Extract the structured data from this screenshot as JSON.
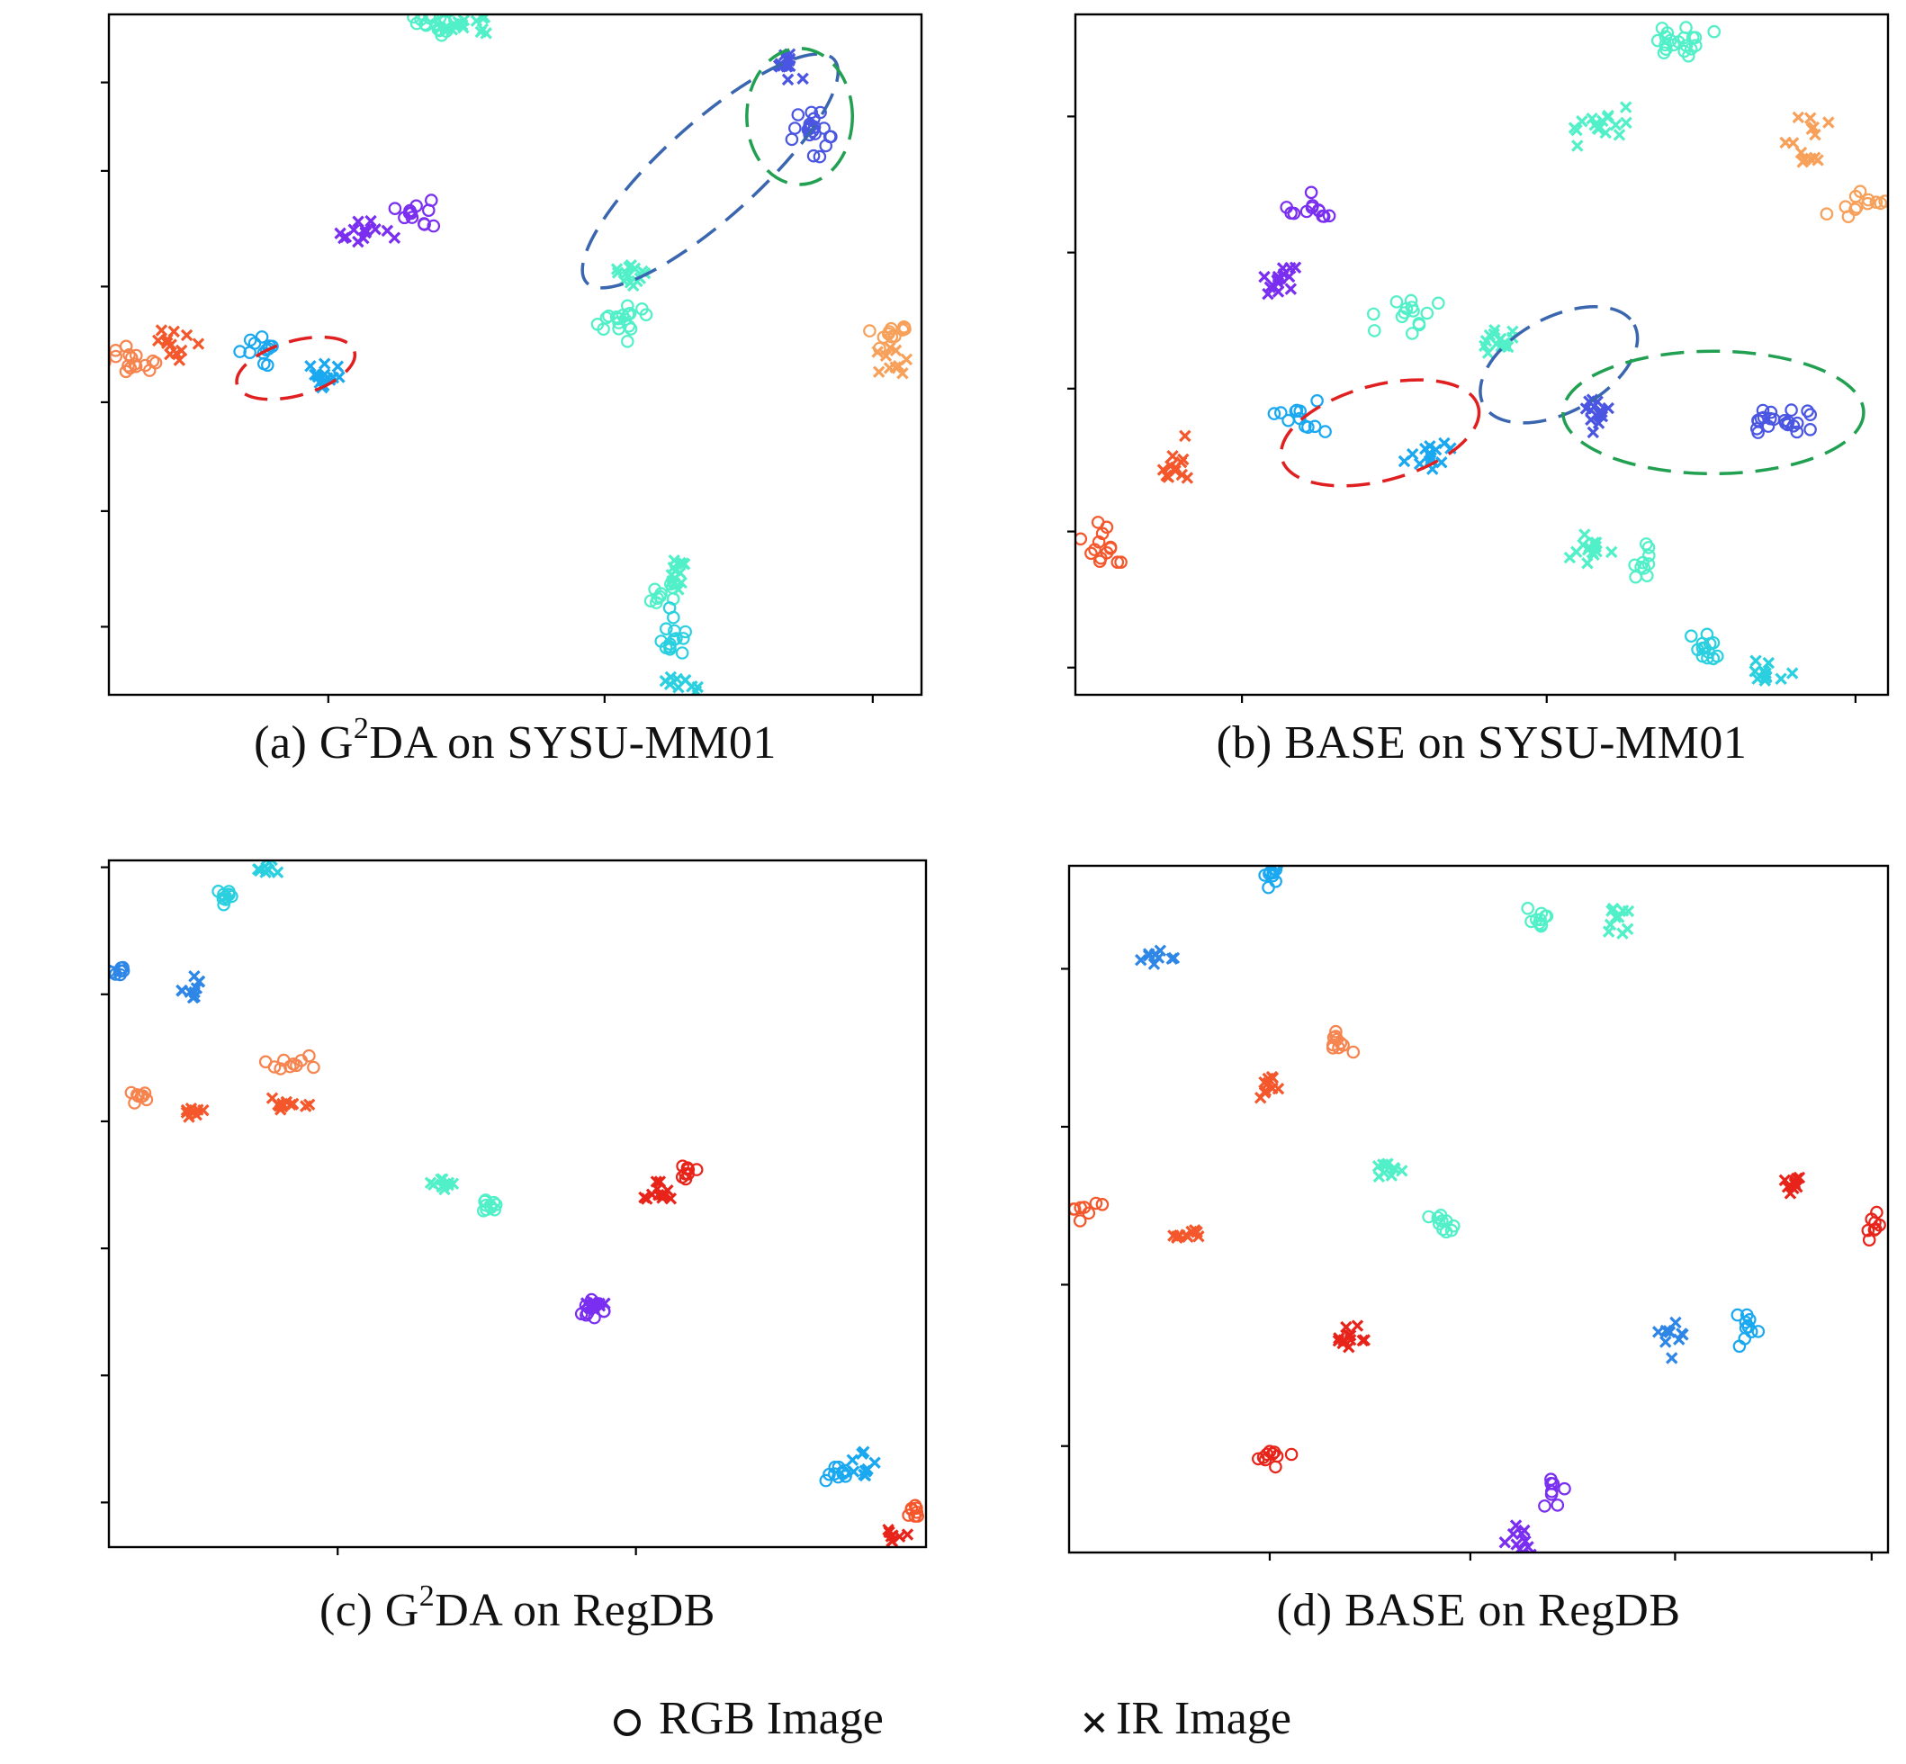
{
  "figure": {
    "legend": {
      "rgb_label": "RGB Image",
      "ir_label": "IR Image"
    }
  },
  "colors": {
    "red": "#e8241a",
    "orange_red": "#f4572b",
    "orange": "#f6844f",
    "orange_light": "#f7a05a",
    "aqua": "#52f0c8",
    "cyan": "#2ad0e0",
    "sky": "#1aa8f0",
    "blue": "#2e86e6",
    "indigo": "#4a56e2",
    "purple": "#7a2ef0",
    "ell_red": "#e02020",
    "ell_blue": "#3a66b0",
    "ell_green": "#20a050"
  },
  "chart_data": [
    {
      "type": "scatter",
      "title": "",
      "caption": {
        "pre": "(a) G",
        "sup": "2",
        "post": "DA on SYSU-MM01"
      },
      "xlim": [
        0,
        100
      ],
      "ylim": [
        0,
        100
      ],
      "x_ticks": [
        27,
        61,
        94
      ],
      "y_ticks": [
        10,
        27,
        43,
        60,
        77,
        90
      ],
      "legend": [
        "RGB Image",
        "IR Image"
      ],
      "clusters": [
        {
          "x": 40,
          "y": 99,
          "color": "aqua",
          "marker": "o",
          "n": 18,
          "sx": 1.0,
          "sy": 1.0
        },
        {
          "x": 43.5,
          "y": 98.5,
          "color": "aqua",
          "marker": "x",
          "n": 18,
          "sx": 1.6,
          "sy": 0.8
        },
        {
          "x": 83.5,
          "y": 93,
          "color": "indigo",
          "marker": "x",
          "n": 14,
          "sx": 1.3,
          "sy": 0.9
        },
        {
          "x": 86.5,
          "y": 83,
          "color": "indigo",
          "marker": "o",
          "n": 22,
          "sx": 1.4,
          "sy": 1.8
        },
        {
          "x": 38,
          "y": 71,
          "color": "purple",
          "marker": "o",
          "n": 12,
          "sx": 0.8,
          "sy": 1.3
        },
        {
          "x": 31,
          "y": 68,
          "color": "purple",
          "marker": "x",
          "n": 14,
          "sx": 1.6,
          "sy": 1.0
        },
        {
          "x": 64,
          "y": 62,
          "color": "aqua",
          "marker": "x",
          "n": 14,
          "sx": 1.4,
          "sy": 1.0
        },
        {
          "x": 63,
          "y": 55,
          "color": "aqua",
          "marker": "o",
          "n": 18,
          "sx": 1.8,
          "sy": 1.0
        },
        {
          "x": 96.5,
          "y": 53,
          "color": "orange_light",
          "marker": "o",
          "n": 12,
          "sx": 1.4,
          "sy": 1.1
        },
        {
          "x": 96,
          "y": 49,
          "color": "orange_light",
          "marker": "x",
          "n": 10,
          "sx": 1.2,
          "sy": 0.9
        },
        {
          "x": 2.5,
          "y": 49,
          "color": "orange",
          "marker": "o",
          "n": 16,
          "sx": 1.8,
          "sy": 1.2
        },
        {
          "x": 8.5,
          "y": 52,
          "color": "orange_red",
          "marker": "x",
          "n": 12,
          "sx": 1.2,
          "sy": 1.1
        },
        {
          "x": 19,
          "y": 50.5,
          "color": "sky",
          "marker": "o",
          "n": 12,
          "sx": 1.4,
          "sy": 0.9
        },
        {
          "x": 27,
          "y": 46.5,
          "color": "sky",
          "marker": "x",
          "n": 14,
          "sx": 1.2,
          "sy": 1.2
        },
        {
          "x": 70,
          "y": 18,
          "color": "aqua",
          "marker": "x",
          "n": 12,
          "sx": 1.2,
          "sy": 1.1
        },
        {
          "x": 68,
          "y": 15,
          "color": "aqua",
          "marker": "o",
          "n": 12,
          "sx": 1.2,
          "sy": 0.9
        },
        {
          "x": 69.5,
          "y": 8,
          "color": "cyan",
          "marker": "o",
          "n": 14,
          "sx": 0.9,
          "sy": 1.6
        },
        {
          "x": 70,
          "y": 1.5,
          "color": "cyan",
          "marker": "x",
          "n": 10,
          "sx": 1.2,
          "sy": 0.6
        }
      ],
      "ellipses": [
        {
          "cx": 74,
          "cy": 77,
          "rx": 20.5,
          "ry": 7,
          "angle": -42,
          "color": "ell_blue"
        },
        {
          "cx": 85,
          "cy": 85,
          "rx": 6.5,
          "ry": 10,
          "angle": 0,
          "color": "ell_green"
        },
        {
          "cx": 23,
          "cy": 48,
          "rx": 7.5,
          "ry": 4,
          "angle": -16,
          "color": "ell_red"
        }
      ]
    },
    {
      "type": "scatter",
      "title": "",
      "caption": {
        "pre": "(b) BASE on SYSU-MM01",
        "sup": "",
        "post": ""
      },
      "xlim": [
        0,
        100
      ],
      "ylim": [
        0,
        100
      ],
      "x_ticks": [
        20.5,
        58,
        96
      ],
      "y_ticks": [
        4,
        24,
        45,
        65,
        85
      ],
      "legend": [
        "RGB Image",
        "IR Image"
      ],
      "clusters": [
        {
          "x": 74,
          "y": 96,
          "color": "aqua",
          "marker": "o",
          "n": 20,
          "sx": 1.8,
          "sy": 1.3
        },
        {
          "x": 65,
          "y": 84,
          "color": "aqua",
          "marker": "x",
          "n": 16,
          "sx": 1.8,
          "sy": 1.1
        },
        {
          "x": 90.5,
          "y": 81,
          "color": "orange_light",
          "marker": "x",
          "n": 14,
          "sx": 1.4,
          "sy": 2.6
        },
        {
          "x": 96.5,
          "y": 72,
          "color": "orange_light",
          "marker": "o",
          "n": 12,
          "sx": 1.6,
          "sy": 1.3
        },
        {
          "x": 29,
          "y": 71.5,
          "color": "purple",
          "marker": "o",
          "n": 12,
          "sx": 1.4,
          "sy": 1.1
        },
        {
          "x": 25,
          "y": 61,
          "color": "purple",
          "marker": "x",
          "n": 16,
          "sx": 1.6,
          "sy": 1.2
        },
        {
          "x": 41,
          "y": 56.5,
          "color": "aqua",
          "marker": "o",
          "n": 14,
          "sx": 1.3,
          "sy": 1.3
        },
        {
          "x": 52,
          "y": 52,
          "color": "aqua",
          "marker": "x",
          "n": 16,
          "sx": 1.5,
          "sy": 1.1
        },
        {
          "x": 64,
          "y": 41.5,
          "color": "indigo",
          "marker": "x",
          "n": 14,
          "sx": 1.0,
          "sy": 1.4
        },
        {
          "x": 87,
          "y": 40,
          "color": "indigo",
          "marker": "o",
          "n": 22,
          "sx": 2.0,
          "sy": 1.2
        },
        {
          "x": 28,
          "y": 40.5,
          "color": "sky",
          "marker": "o",
          "n": 12,
          "sx": 1.6,
          "sy": 1.1
        },
        {
          "x": 43,
          "y": 35.5,
          "color": "sky",
          "marker": "x",
          "n": 14,
          "sx": 1.4,
          "sy": 1.2
        },
        {
          "x": 12,
          "y": 34,
          "color": "orange_red",
          "marker": "x",
          "n": 12,
          "sx": 1.2,
          "sy": 1.5
        },
        {
          "x": 3.5,
          "y": 22,
          "color": "orange_red",
          "marker": "o",
          "n": 14,
          "sx": 1.4,
          "sy": 1.6
        },
        {
          "x": 63.5,
          "y": 21.5,
          "color": "aqua",
          "marker": "x",
          "n": 14,
          "sx": 1.2,
          "sy": 1.6
        },
        {
          "x": 70,
          "y": 19.5,
          "color": "aqua",
          "marker": "o",
          "n": 10,
          "sx": 0.8,
          "sy": 1.4
        },
        {
          "x": 77,
          "y": 6.5,
          "color": "cyan",
          "marker": "o",
          "n": 14,
          "sx": 1.3,
          "sy": 1.4
        },
        {
          "x": 85,
          "y": 3.5,
          "color": "cyan",
          "marker": "x",
          "n": 12,
          "sx": 1.2,
          "sy": 1.4
        }
      ],
      "ellipses": [
        {
          "cx": 37.5,
          "cy": 38.5,
          "rx": 12.5,
          "ry": 7,
          "angle": -15,
          "color": "ell_red"
        },
        {
          "cx": 59.5,
          "cy": 48.5,
          "rx": 10.5,
          "ry": 7,
          "angle": -28,
          "color": "ell_blue"
        },
        {
          "cx": 78.5,
          "cy": 41.5,
          "rx": 18.5,
          "ry": 9,
          "angle": 0,
          "color": "ell_green"
        }
      ]
    },
    {
      "type": "scatter",
      "title": "",
      "caption": {
        "pre": "(c) G",
        "sup": "2",
        "post": "DA on RegDB"
      },
      "xlim": [
        0,
        100
      ],
      "ylim": [
        0,
        100
      ],
      "x_ticks": [
        28,
        64.5
      ],
      "y_ticks": [
        6.5,
        25,
        43.5,
        62,
        80.5,
        99
      ],
      "legend": [
        "RGB Image",
        "IR Image"
      ],
      "clusters": [
        {
          "x": 19.5,
          "y": 99,
          "color": "cyan",
          "marker": "x",
          "n": 10,
          "sx": 1.0,
          "sy": 0.8
        },
        {
          "x": 14.5,
          "y": 95,
          "color": "cyan",
          "marker": "o",
          "n": 10,
          "sx": 0.8,
          "sy": 0.8
        },
        {
          "x": 1.5,
          "y": 84,
          "color": "blue",
          "marker": "o",
          "n": 8,
          "sx": 1.0,
          "sy": 0.5
        },
        {
          "x": 10.5,
          "y": 81.5,
          "color": "blue",
          "marker": "x",
          "n": 10,
          "sx": 0.8,
          "sy": 0.8
        },
        {
          "x": 21.5,
          "y": 70,
          "color": "orange",
          "marker": "o",
          "n": 10,
          "sx": 1.6,
          "sy": 0.6
        },
        {
          "x": 4,
          "y": 66,
          "color": "orange",
          "marker": "o",
          "n": 8,
          "sx": 0.7,
          "sy": 0.6
        },
        {
          "x": 22,
          "y": 64.5,
          "color": "orange_red",
          "marker": "x",
          "n": 12,
          "sx": 1.6,
          "sy": 0.5
        },
        {
          "x": 10,
          "y": 63.5,
          "color": "orange_red",
          "marker": "x",
          "n": 8,
          "sx": 0.7,
          "sy": 0.5
        },
        {
          "x": 40.5,
          "y": 52.5,
          "color": "aqua",
          "marker": "x",
          "n": 10,
          "sx": 1.0,
          "sy": 0.6
        },
        {
          "x": 46.5,
          "y": 49.5,
          "color": "aqua",
          "marker": "o",
          "n": 10,
          "sx": 0.9,
          "sy": 0.6
        },
        {
          "x": 71,
          "y": 54.5,
          "color": "red",
          "marker": "o",
          "n": 8,
          "sx": 0.7,
          "sy": 0.8
        },
        {
          "x": 67,
          "y": 51.5,
          "color": "red",
          "marker": "x",
          "n": 12,
          "sx": 0.8,
          "sy": 1.0
        },
        {
          "x": 59.5,
          "y": 34.5,
          "color": "purple",
          "marker": "o",
          "n": 10,
          "sx": 0.7,
          "sy": 0.9
        },
        {
          "x": 59.5,
          "y": 35,
          "color": "purple",
          "marker": "x",
          "n": 10,
          "sx": 0.6,
          "sy": 0.9
        },
        {
          "x": 92.5,
          "y": 11.5,
          "color": "sky",
          "marker": "x",
          "n": 10,
          "sx": 0.7,
          "sy": 0.9
        },
        {
          "x": 89,
          "y": 11,
          "color": "sky",
          "marker": "o",
          "n": 10,
          "sx": 1.2,
          "sy": 0.6
        },
        {
          "x": 98,
          "y": 5.5,
          "color": "orange_red",
          "marker": "o",
          "n": 8,
          "sx": 1.0,
          "sy": 0.6
        },
        {
          "x": 96.5,
          "y": 1.5,
          "color": "red",
          "marker": "x",
          "n": 8,
          "sx": 0.8,
          "sy": 0.6
        }
      ],
      "ellipses": []
    },
    {
      "type": "scatter",
      "title": "",
      "caption": {
        "pre": "(d) BASE on RegDB",
        "sup": "",
        "post": ""
      },
      "xlim": [
        0,
        100
      ],
      "ylim": [
        0,
        100
      ],
      "x_ticks": [
        24.5,
        49,
        74,
        98
      ],
      "y_ticks": [
        15.5,
        39,
        62,
        85
      ],
      "legend": [
        "RGB Image",
        "IR Image"
      ],
      "clusters": [
        {
          "x": 24.5,
          "y": 98.5,
          "color": "sky",
          "marker": "o",
          "n": 10,
          "sx": 0.8,
          "sy": 0.9
        },
        {
          "x": 57.5,
          "y": 92.5,
          "color": "aqua",
          "marker": "o",
          "n": 10,
          "sx": 0.9,
          "sy": 0.9
        },
        {
          "x": 66.5,
          "y": 92,
          "color": "aqua",
          "marker": "x",
          "n": 10,
          "sx": 0.9,
          "sy": 1.1
        },
        {
          "x": 10,
          "y": 86.5,
          "color": "blue",
          "marker": "x",
          "n": 10,
          "sx": 1.0,
          "sy": 0.8
        },
        {
          "x": 33,
          "y": 74,
          "color": "orange",
          "marker": "o",
          "n": 10,
          "sx": 1.4,
          "sy": 0.9
        },
        {
          "x": 24.5,
          "y": 67.5,
          "color": "orange_red",
          "marker": "x",
          "n": 10,
          "sx": 1.0,
          "sy": 1.4
        },
        {
          "x": 38.5,
          "y": 55,
          "color": "aqua",
          "marker": "x",
          "n": 10,
          "sx": 0.9,
          "sy": 1.0
        },
        {
          "x": 46,
          "y": 48,
          "color": "aqua",
          "marker": "o",
          "n": 10,
          "sx": 0.9,
          "sy": 0.9
        },
        {
          "x": 2,
          "y": 50,
          "color": "orange_red",
          "marker": "o",
          "n": 8,
          "sx": 0.8,
          "sy": 0.9
        },
        {
          "x": 14,
          "y": 46.5,
          "color": "orange_red",
          "marker": "x",
          "n": 10,
          "sx": 1.2,
          "sy": 0.6
        },
        {
          "x": 88.5,
          "y": 54,
          "color": "red",
          "marker": "x",
          "n": 10,
          "sx": 0.6,
          "sy": 0.9
        },
        {
          "x": 98.5,
          "y": 47.5,
          "color": "red",
          "marker": "o",
          "n": 8,
          "sx": 0.7,
          "sy": 1.2
        },
        {
          "x": 73.5,
          "y": 32,
          "color": "blue",
          "marker": "x",
          "n": 10,
          "sx": 0.9,
          "sy": 1.1
        },
        {
          "x": 83,
          "y": 33,
          "color": "sky",
          "marker": "o",
          "n": 10,
          "sx": 0.7,
          "sy": 1.3
        },
        {
          "x": 34.5,
          "y": 31,
          "color": "red",
          "marker": "x",
          "n": 12,
          "sx": 0.8,
          "sy": 0.9
        },
        {
          "x": 24.5,
          "y": 14,
          "color": "red",
          "marker": "o",
          "n": 10,
          "sx": 1.0,
          "sy": 0.7
        },
        {
          "x": 59,
          "y": 8.5,
          "color": "purple",
          "marker": "o",
          "n": 8,
          "sx": 0.6,
          "sy": 1.2
        },
        {
          "x": 55,
          "y": 1.5,
          "color": "purple",
          "marker": "x",
          "n": 10,
          "sx": 0.9,
          "sy": 1.0
        }
      ],
      "ellipses": []
    }
  ]
}
